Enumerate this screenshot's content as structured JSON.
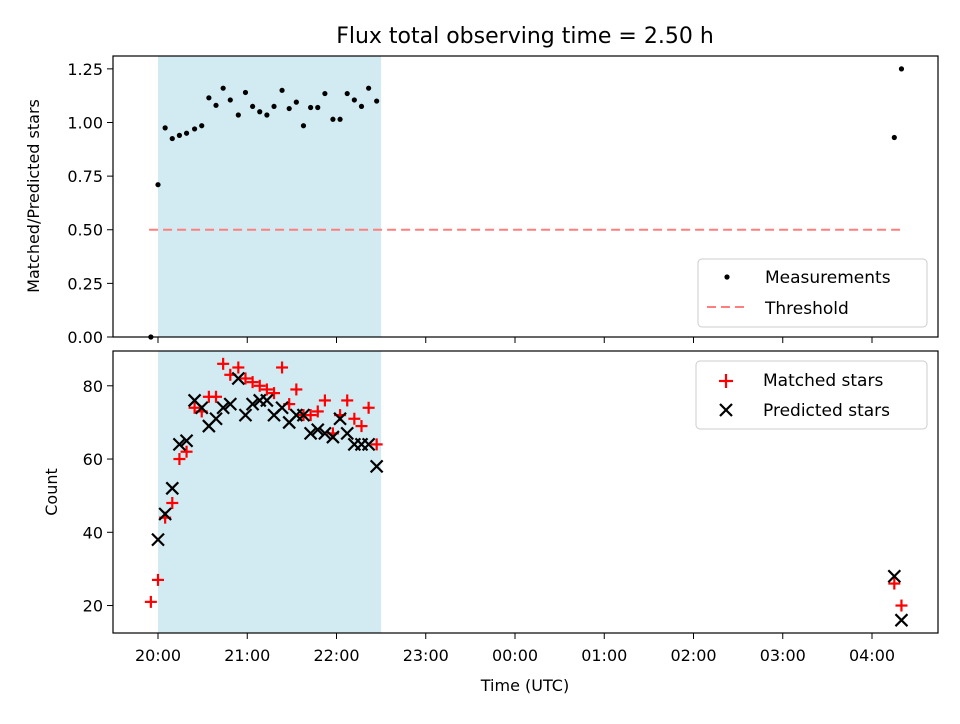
{
  "title": "Flux total observing time = 2.50 h",
  "time_ticks": [
    "20:00",
    "21:00",
    "22:00",
    "23:00",
    "00:00",
    "01:00",
    "02:00",
    "03:00",
    "04:00"
  ],
  "colors": {
    "shade": "#add8e6",
    "threshold": "#ff7f7f",
    "matched": "#ff0000",
    "predicted": "#000000",
    "measurement": "#000000"
  },
  "chart_data": [
    {
      "type": "scatter",
      "x_unit": "hours relative to 20:00 UTC",
      "ylabel": "Matched/Predicted stars",
      "ylim": [
        0,
        1.31
      ],
      "y_ticks": [
        "0.00",
        "0.25",
        "0.50",
        "0.75",
        "1.00",
        "1.25"
      ],
      "shaded_span": {
        "x_start": 0,
        "x_end": 2.5
      },
      "threshold": {
        "y": 0.5,
        "x_start": -0.1,
        "x_end": 8.35
      },
      "legend": {
        "placement": "lower right",
        "entries": [
          "Measurements",
          "Threshold"
        ]
      },
      "series": [
        {
          "name": "Measurements",
          "points": [
            [
              -0.08,
              0.0
            ],
            [
              0.0,
              0.71
            ],
            [
              0.08,
              0.975
            ],
            [
              0.16,
              0.925
            ],
            [
              0.24,
              0.94
            ],
            [
              0.32,
              0.95
            ],
            [
              0.41,
              0.97
            ],
            [
              0.49,
              0.985
            ],
            [
              0.57,
              1.115
            ],
            [
              0.65,
              1.08
            ],
            [
              0.73,
              1.16
            ],
            [
              0.81,
              1.105
            ],
            [
              0.9,
              1.035
            ],
            [
              0.98,
              1.14
            ],
            [
              1.06,
              1.075
            ],
            [
              1.14,
              1.05
            ],
            [
              1.22,
              1.035
            ],
            [
              1.3,
              1.075
            ],
            [
              1.39,
              1.15
            ],
            [
              1.47,
              1.065
            ],
            [
              1.55,
              1.095
            ],
            [
              1.63,
              0.985
            ],
            [
              1.71,
              1.07
            ],
            [
              1.79,
              1.07
            ],
            [
              1.87,
              1.135
            ],
            [
              1.96,
              1.015
            ],
            [
              2.04,
              1.015
            ],
            [
              2.12,
              1.135
            ],
            [
              2.2,
              1.105
            ],
            [
              2.28,
              1.075
            ],
            [
              2.36,
              1.16
            ],
            [
              2.45,
              1.1
            ],
            [
              8.25,
              0.93
            ],
            [
              8.33,
              1.25
            ]
          ]
        }
      ]
    },
    {
      "type": "scatter",
      "x_unit": "hours relative to 20:00 UTC",
      "xlabel": "Time (UTC)",
      "ylabel": "Count",
      "ylim": [
        12.5,
        89.5
      ],
      "y_ticks": [
        "20",
        "40",
        "60",
        "80"
      ],
      "shaded_span": {
        "x_start": 0,
        "x_end": 2.5
      },
      "legend": {
        "placement": "upper right",
        "entries": [
          "Matched stars",
          "Predicted stars"
        ]
      },
      "series": [
        {
          "name": "Matched stars",
          "points": [
            [
              -0.08,
              21
            ],
            [
              0.0,
              27
            ],
            [
              0.08,
              44
            ],
            [
              0.16,
              48
            ],
            [
              0.24,
              60
            ],
            [
              0.32,
              62
            ],
            [
              0.41,
              74
            ],
            [
              0.49,
              73
            ],
            [
              0.57,
              77
            ],
            [
              0.65,
              77
            ],
            [
              0.73,
              86
            ],
            [
              0.81,
              83
            ],
            [
              0.9,
              85
            ],
            [
              0.98,
              82
            ],
            [
              1.06,
              81
            ],
            [
              1.14,
              80
            ],
            [
              1.22,
              79
            ],
            [
              1.3,
              78
            ],
            [
              1.39,
              85
            ],
            [
              1.47,
              75
            ],
            [
              1.55,
              79
            ],
            [
              1.63,
              72
            ],
            [
              1.71,
              72
            ],
            [
              1.79,
              73
            ],
            [
              1.87,
              76
            ],
            [
              1.96,
              67
            ],
            [
              2.04,
              72
            ],
            [
              2.12,
              76
            ],
            [
              2.2,
              71
            ],
            [
              2.28,
              69
            ],
            [
              2.36,
              74
            ],
            [
              2.45,
              64
            ],
            [
              8.25,
              26
            ],
            [
              8.33,
              20
            ]
          ]
        },
        {
          "name": "Predicted stars",
          "points": [
            [
              0.0,
              38
            ],
            [
              0.08,
              45
            ],
            [
              0.16,
              52
            ],
            [
              0.24,
              64
            ],
            [
              0.32,
              65
            ],
            [
              0.41,
              76
            ],
            [
              0.49,
              74
            ],
            [
              0.57,
              69
            ],
            [
              0.65,
              71
            ],
            [
              0.73,
              74
            ],
            [
              0.81,
              75
            ],
            [
              0.9,
              82
            ],
            [
              0.98,
              72
            ],
            [
              1.06,
              75
            ],
            [
              1.14,
              76
            ],
            [
              1.22,
              76
            ],
            [
              1.3,
              72
            ],
            [
              1.39,
              74
            ],
            [
              1.47,
              70
            ],
            [
              1.55,
              72
            ],
            [
              1.63,
              72
            ],
            [
              1.71,
              67
            ],
            [
              1.79,
              68
            ],
            [
              1.87,
              67
            ],
            [
              1.96,
              66
            ],
            [
              2.04,
              71
            ],
            [
              2.12,
              67
            ],
            [
              2.2,
              64
            ],
            [
              2.28,
              64
            ],
            [
              2.36,
              64
            ],
            [
              2.45,
              58
            ],
            [
              8.25,
              28
            ],
            [
              8.33,
              16
            ]
          ]
        }
      ]
    }
  ]
}
